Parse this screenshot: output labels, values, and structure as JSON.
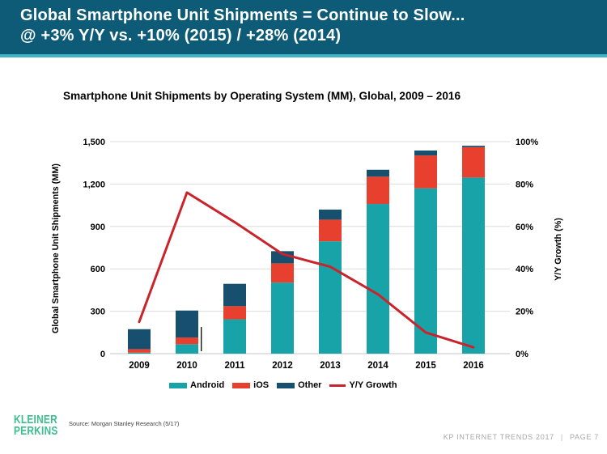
{
  "header": {
    "line1": "Global Smartphone Unit Shipments = Continue to Slow...",
    "line2": "@ +3% Y/Y vs. +10% (2015) / +28% (2014)",
    "bg_color": "#0E5B77",
    "accent_color": "#3FB4C7"
  },
  "chart_data": {
    "type": "bar",
    "subtype": "stacked-bar-with-line-overlay",
    "title": "Smartphone Unit Shipments by Operating System (MM), Global, 2009 – 2016",
    "categories": [
      "2009",
      "2010",
      "2011",
      "2012",
      "2013",
      "2014",
      "2015",
      "2016"
    ],
    "series": [
      {
        "name": "Android",
        "axis": "left",
        "color": "#17A3A8",
        "values": [
          7,
          67,
          243,
          503,
          795,
          1059,
          1170,
          1246
        ]
      },
      {
        "name": "iOS",
        "axis": "left",
        "color": "#E8402F",
        "values": [
          25,
          47,
          93,
          136,
          153,
          193,
          232,
          215
        ]
      },
      {
        "name": "Other",
        "axis": "left",
        "color": "#17506F",
        "values": [
          141,
          191,
          158,
          86,
          71,
          49,
          35,
          10
        ]
      }
    ],
    "totals": [
      173,
      305,
      494,
      725,
      1019,
      1301,
      1437,
      1471
    ],
    "line": {
      "name": "Y/Y Growth",
      "axis": "right",
      "color": "#C9242B",
      "values": [
        15,
        76,
        62,
        47,
        41,
        28,
        10,
        3
      ]
    },
    "left_axis": {
      "label": "Global Smartphone Unit Shipments (MM)",
      "min": 0,
      "max": 1500,
      "step": 300,
      "ticks": [
        "0",
        "300",
        "600",
        "900",
        "1,200",
        "1,500"
      ]
    },
    "right_axis": {
      "label": "Y/Y Growth (%)",
      "min": 0,
      "max": 100,
      "step": 20,
      "ticks": [
        "0%",
        "20%",
        "40%",
        "60%",
        "80%",
        "100%"
      ]
    },
    "legend": {
      "position": "bottom",
      "items": [
        "Android",
        "iOS",
        "Other",
        "Y/Y Growth"
      ]
    },
    "grid": "horizontal"
  },
  "footer": {
    "logo_line1": "KLEINER",
    "logo_line2": "PERKINS",
    "logo_color": "#3BBE8E",
    "source": "Source: Morgan Stanley Research (5/17)",
    "deck_label": "KP INTERNET TRENDS 2017",
    "separator": "|",
    "page_label": "PAGE 7"
  }
}
